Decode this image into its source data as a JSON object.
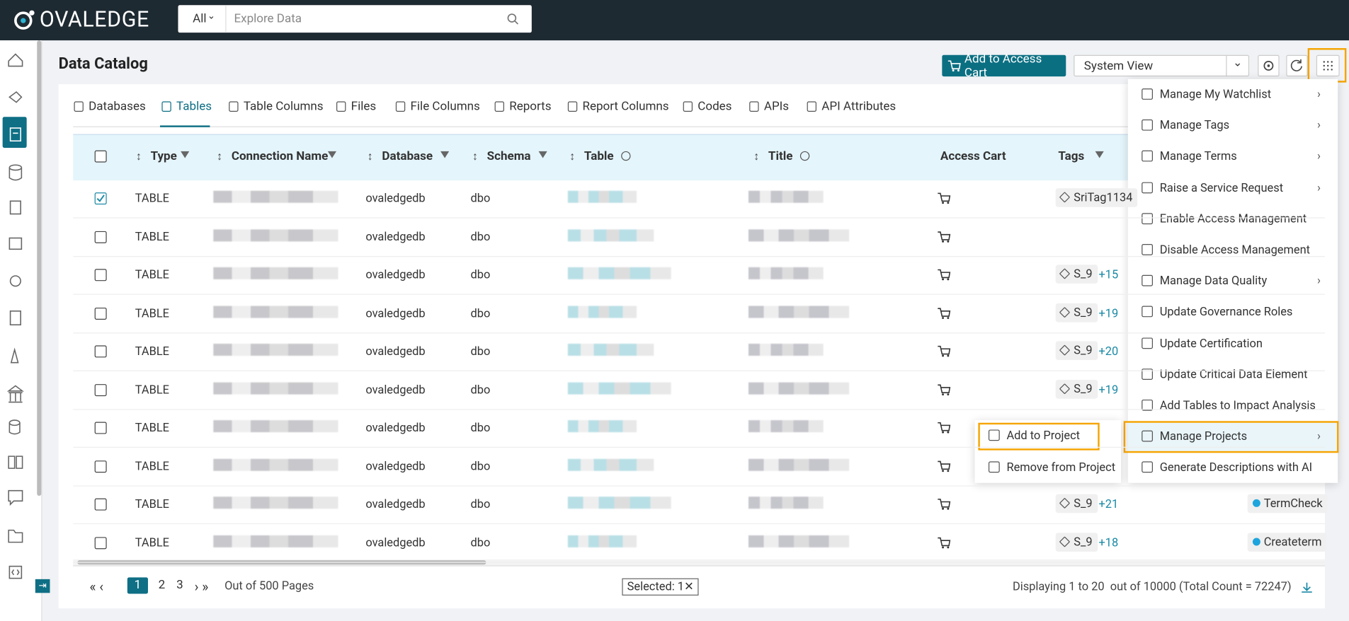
{
  "header": {
    "logo": "OVALEDGE",
    "search_scope": "All",
    "search_placeholder": "Explore Data"
  },
  "page": {
    "title": "Data Catalog",
    "add_to_access_cart": "Add to Access Cart",
    "view": "System View"
  },
  "tabs": [
    "Databases",
    "Tables",
    "Table Columns",
    "Files",
    "File Columns",
    "Reports",
    "Report Columns",
    "Codes",
    "APIs",
    "API Attributes"
  ],
  "columns": [
    "Type",
    "Connection Name",
    "Database",
    "Schema",
    "Table",
    "Title",
    "Access Cart",
    "Tags"
  ],
  "rows": [
    {
      "checked": true,
      "type": "TABLE",
      "database": "ovaledgedb",
      "schema": "dbo",
      "tag": "SriTag1134"
    },
    {
      "checked": false,
      "type": "TABLE",
      "database": "ovaledgedb",
      "schema": "dbo"
    },
    {
      "checked": false,
      "type": "TABLE",
      "database": "ovaledgedb",
      "schema": "dbo",
      "tag": "S_9",
      "tag_more": "+15"
    },
    {
      "checked": false,
      "type": "TABLE",
      "database": "ovaledgedb",
      "schema": "dbo",
      "tag": "S_9",
      "tag_more": "+19"
    },
    {
      "checked": false,
      "type": "TABLE",
      "database": "ovaledgedb",
      "schema": "dbo",
      "tag": "S_9",
      "tag_more": "+20"
    },
    {
      "checked": false,
      "type": "TABLE",
      "database": "ovaledgedb",
      "schema": "dbo",
      "tag": "S_9",
      "tag_more": "+19"
    },
    {
      "checked": false,
      "type": "TABLE",
      "database": "ovaledgedb",
      "schema": "dbo"
    },
    {
      "checked": false,
      "type": "TABLE",
      "database": "ovaledgedb",
      "schema": "dbo"
    },
    {
      "checked": false,
      "type": "TABLE",
      "database": "ovaledgedb",
      "schema": "dbo",
      "tag": "S_9",
      "tag_more": "+21",
      "term": "TermCheck"
    },
    {
      "checked": false,
      "type": "TABLE",
      "database": "ovaledgedb",
      "schema": "dbo",
      "tag": "S_9",
      "tag_more": "+18",
      "term": "Createterm"
    }
  ],
  "menu": [
    {
      "label": "Manage My Watchlist",
      "submenu": true
    },
    {
      "label": "Manage Tags",
      "submenu": true
    },
    {
      "label": "Manage Terms",
      "submenu": true
    },
    {
      "label": "Raise a Service Request",
      "submenu": true
    },
    {
      "label": "Enable Access Management",
      "submenu": false
    },
    {
      "label": "Disable Access Management",
      "submenu": false
    },
    {
      "label": "Manage Data Quality",
      "submenu": true
    },
    {
      "label": "Update Governance Roles",
      "submenu": false
    },
    {
      "label": "Update Certification",
      "submenu": false
    },
    {
      "label": "Update Critical Data Element",
      "submenu": false
    },
    {
      "label": "Add Tables to Impact Analysis",
      "submenu": false
    },
    {
      "label": "Manage Projects",
      "submenu": true,
      "active": true
    },
    {
      "label": "Generate Descriptions with AI",
      "submenu": false
    }
  ],
  "submenu": [
    "Add to Project",
    "Remove from Project"
  ],
  "footer": {
    "pages": [
      "1",
      "2",
      "3"
    ],
    "page_count": "Out of 500 Pages",
    "selected": "Selected: 1",
    "summary": "Displaying 1 to 20  out of 10000 (Total Count = 72247)"
  }
}
